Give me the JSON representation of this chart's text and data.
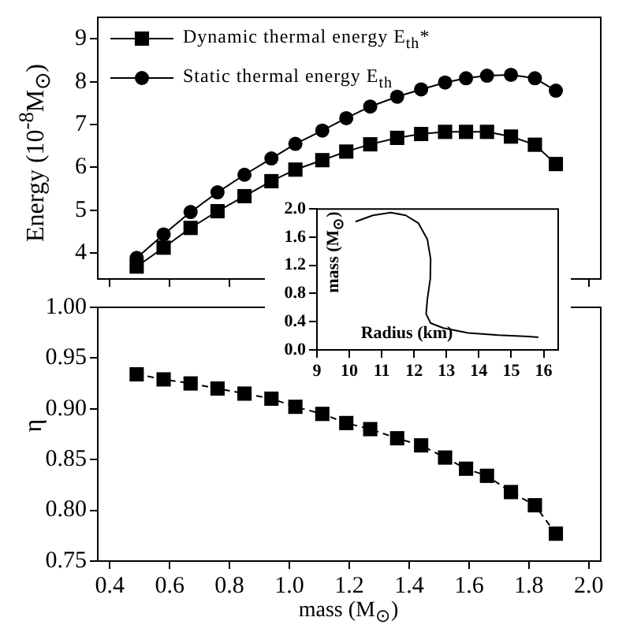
{
  "chart_data": [
    {
      "type": "line",
      "ylabel": "Energy (10$^{-8}$M$_{⊙}$)",
      "legend": "top left",
      "tick_labels": "y",
      "grid": false,
      "x": [
        0.49,
        0.58,
        0.67,
        0.76,
        0.85,
        0.94,
        1.02,
        1.11,
        1.19,
        1.27,
        1.36,
        1.44,
        1.52,
        1.59,
        1.66,
        1.74,
        1.82,
        1.89
      ],
      "series": [
        {
          "name": "Dynamic thermal energy E$_{th}$*",
          "color": "#000000",
          "marker": "square",
          "values": [
            3.69,
            4.13,
            4.59,
            4.98,
            5.33,
            5.68,
            5.95,
            6.17,
            6.37,
            6.54,
            6.69,
            6.78,
            6.83,
            6.83,
            6.83,
            6.72,
            6.53,
            6.08
          ]
        },
        {
          "name": "Static thermal energy E$_{th}$",
          "color": "#000000",
          "marker": "circle",
          "values": [
            3.89,
            4.44,
            4.96,
            5.42,
            5.83,
            6.21,
            6.55,
            6.86,
            7.15,
            7.42,
            7.65,
            7.82,
            7.98,
            8.08,
            8.14,
            8.16,
            8.08,
            7.79
          ]
        }
      ],
      "xlim": [
        0.36,
        2.04
      ],
      "xticks": [
        0.4,
        0.6,
        0.8,
        1.8,
        2
      ],
      "ylim": [
        3.4,
        9.5
      ],
      "yticks": [
        4,
        5,
        6,
        7,
        8,
        9
      ]
    },
    {
      "type": "line",
      "xlabel": "mass (M$_{⊙}$)",
      "ylabel": "η",
      "grid": false,
      "marker": "square",
      "line_style": "dashed",
      "color": "#000000",
      "x": [
        0.49,
        0.58,
        0.67,
        0.76,
        0.85,
        0.94,
        1.02,
        1.11,
        1.19,
        1.27,
        1.36,
        1.44,
        1.52,
        1.59,
        1.66,
        1.74,
        1.82,
        1.89
      ],
      "values": [
        0.934,
        0.929,
        0.925,
        0.92,
        0.915,
        0.91,
        0.902,
        0.895,
        0.886,
        0.88,
        0.871,
        0.864,
        0.852,
        0.841,
        0.834,
        0.818,
        0.805,
        0.777
      ],
      "xlim": [
        0.36,
        2.04
      ],
      "xticks": [
        0.4,
        0.6,
        0.8,
        {
          "value": 1,
          "label": "1.0"
        },
        1.2,
        1.4,
        1.6,
        1.8,
        {
          "value": 2,
          "label": "2.0"
        }
      ],
      "ylim": [
        0.75,
        1.0
      ],
      "yticks": [
        0.75,
        {
          "value": 0.8,
          "label": "0.80"
        },
        0.85,
        {
          "value": 0.9,
          "label": "0.90"
        },
        0.95,
        {
          "value": 1,
          "label": "1.00"
        }
      ]
    },
    {
      "type": "line",
      "xlabel": "Radius (km)",
      "ylabel": "mass (M$_{⊙}$)",
      "grid": false,
      "marker": "none",
      "color": "#000000",
      "x": [
        10.19,
        10.73,
        11.28,
        11.74,
        12.13,
        12.41,
        12.51,
        12.5,
        12.41,
        12.37,
        12.51,
        12.9,
        13.67,
        14.6,
        15.53,
        15.84
      ],
      "values": [
        1.82,
        1.91,
        1.95,
        1.91,
        1.8,
        1.57,
        1.29,
        1.01,
        0.72,
        0.51,
        0.38,
        0.31,
        0.24,
        0.21,
        0.19,
        0.18
      ],
      "xlim": [
        9,
        16.45
      ],
      "xticks": [
        9,
        10,
        11,
        12,
        13,
        14,
        15,
        16
      ],
      "ylim": [
        0,
        2
      ],
      "yticks": [
        {
          "value": 0,
          "label": "0.0"
        },
        0.4,
        0.8,
        1.2,
        1.6,
        {
          "value": 2,
          "label": "2.0"
        }
      ]
    }
  ]
}
